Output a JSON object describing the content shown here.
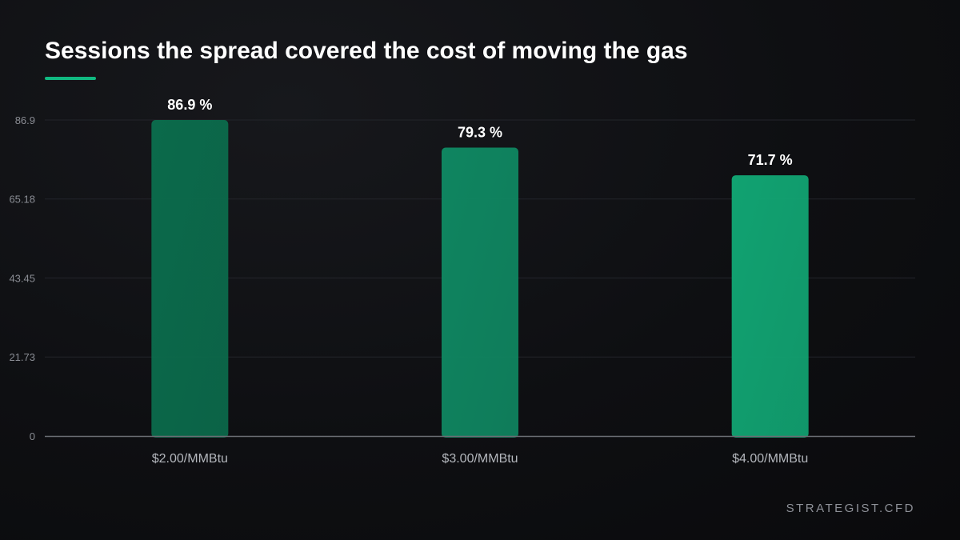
{
  "title": "Sessions the spread covered the cost of moving the gas",
  "brand": "STRATEGIST.CFD",
  "colors": {
    "accent": "#10b981",
    "grid": "#23252b",
    "axis": "#6b6e75",
    "bars": [
      "#0b6a4b",
      "#0f8560",
      "#11a271"
    ]
  },
  "chart_data": {
    "type": "bar",
    "title": "Sessions the spread covered the cost of moving the gas",
    "xlabel": "",
    "ylabel": "",
    "categories": [
      "$2.00/MMBtu",
      "$3.00/MMBtu",
      "$4.00/MMBtu"
    ],
    "values": [
      86.9,
      79.3,
      71.7
    ],
    "value_labels": [
      "86.9 %",
      "79.3 %",
      "71.7 %"
    ],
    "yticks": [
      0,
      21.73,
      43.45,
      65.18,
      86.9
    ],
    "ytick_labels": [
      "0",
      "21.73",
      "43.45",
      "65.18",
      "86.9"
    ],
    "ylim": [
      0,
      86.9
    ],
    "grid": true,
    "legend": "none"
  }
}
